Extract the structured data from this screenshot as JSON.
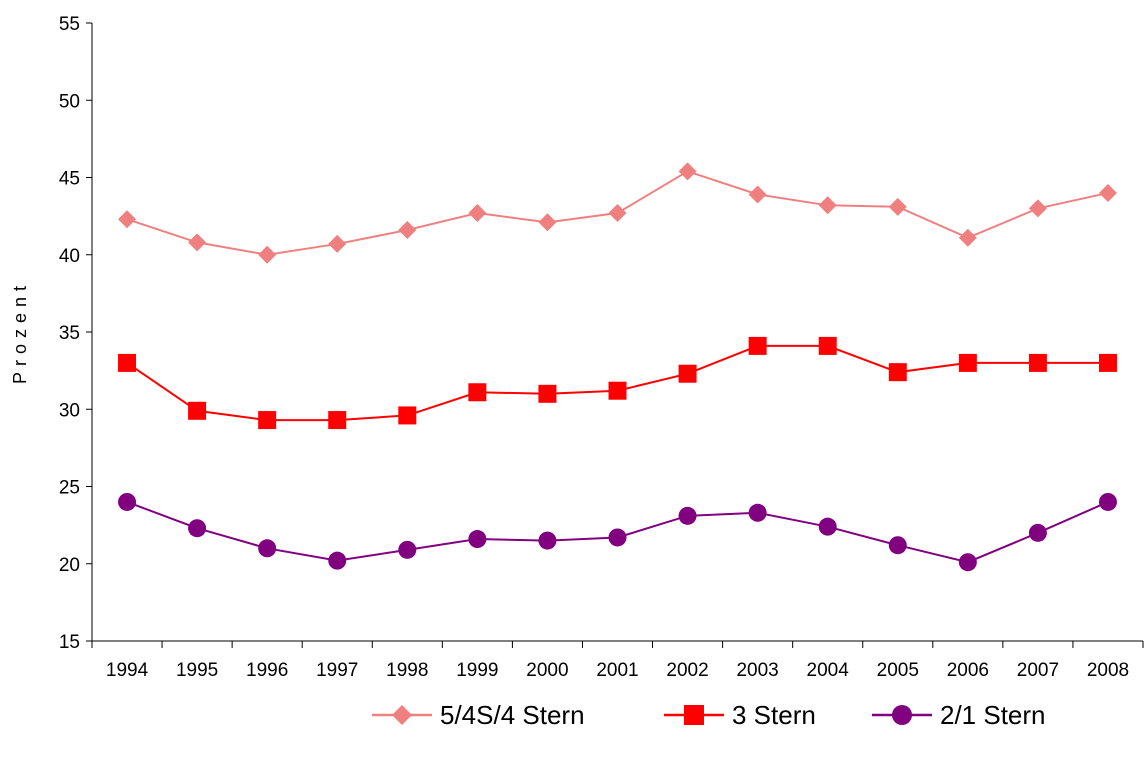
{
  "chart_data": {
    "type": "line",
    "title": "",
    "xlabel": "",
    "ylabel": "Prozent",
    "ylim": [
      15,
      55
    ],
    "yticks": [
      "15",
      "20",
      "25",
      "30",
      "35",
      "40",
      "45",
      "50",
      "55"
    ],
    "categories": [
      "1994",
      "1995",
      "1996",
      "1997",
      "1998",
      "1999",
      "2000",
      "2001",
      "2002",
      "2003",
      "2004",
      "2005",
      "2006",
      "2007",
      "2008"
    ],
    "grid": false,
    "legend_position": "bottom",
    "series": [
      {
        "name": "5/4S/4 Stern",
        "color": "#F08080",
        "marker": "diamond",
        "values": [
          42.3,
          40.8,
          40.0,
          40.7,
          41.6,
          42.7,
          42.1,
          42.7,
          45.4,
          43.9,
          43.2,
          43.1,
          41.1,
          43.0,
          44.0
        ]
      },
      {
        "name": "3 Stern",
        "color": "#FF0000",
        "marker": "square",
        "values": [
          33.0,
          29.9,
          29.3,
          29.3,
          29.6,
          31.1,
          31.0,
          31.2,
          32.3,
          34.1,
          34.1,
          32.4,
          33.0,
          33.0,
          33.0
        ]
      },
      {
        "name": "2/1 Stern",
        "color": "#800080",
        "marker": "circle",
        "values": [
          24.0,
          22.3,
          21.0,
          20.2,
          20.9,
          21.6,
          21.5,
          21.7,
          23.1,
          23.3,
          22.4,
          21.2,
          20.1,
          22.0,
          24.0
        ]
      }
    ]
  }
}
